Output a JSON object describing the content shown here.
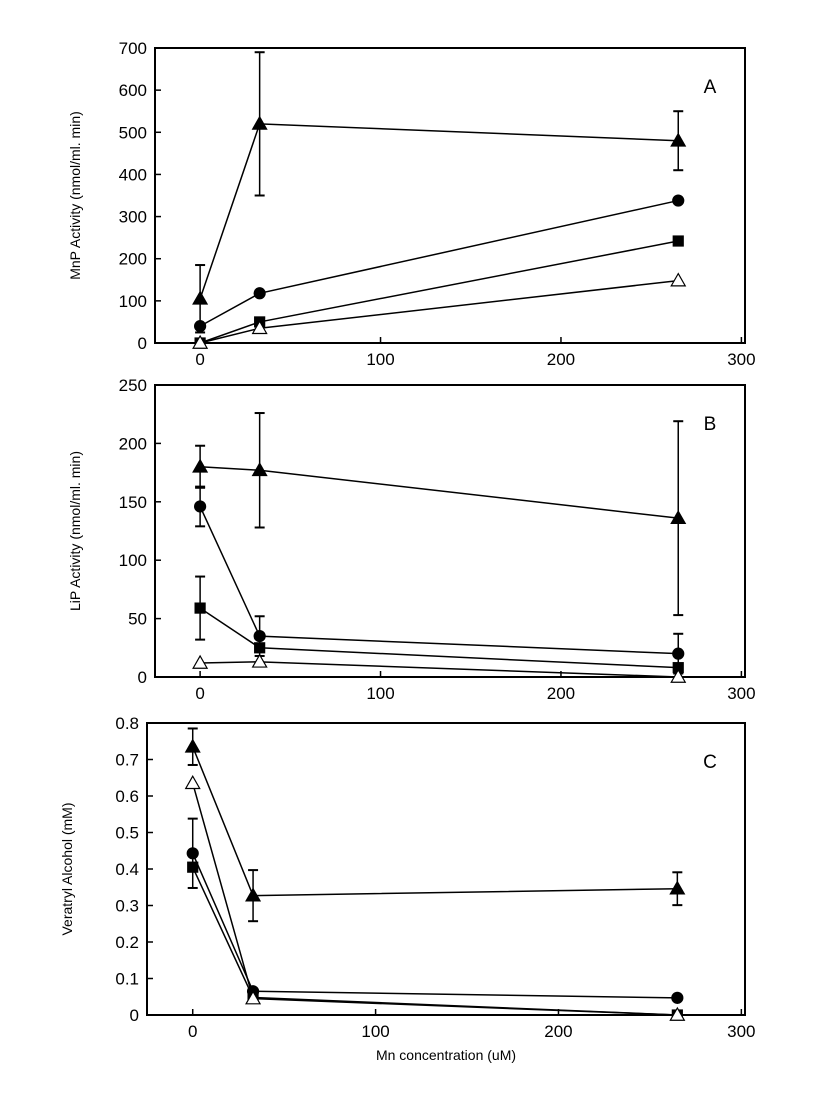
{
  "chart_data": [
    {
      "type": "line",
      "annotation": "A",
      "y_label": "MnP Activity (nmol/ml. min)",
      "x": [
        0,
        33,
        265
      ],
      "xlim": [
        -25,
        302
      ],
      "xticks": [
        0,
        100,
        200,
        300
      ],
      "ylim": [
        0,
        700
      ],
      "yticks": [
        0,
        100,
        200,
        300,
        400,
        500,
        600,
        700
      ],
      "series": [
        {
          "marker": "triangle-filled",
          "color": "#000000",
          "values": [
            105,
            520,
            480
          ],
          "errors": [
            80,
            170,
            70
          ]
        },
        {
          "marker": "circle-filled",
          "color": "#000000",
          "values": [
            40,
            118,
            338
          ]
        },
        {
          "marker": "square-filled",
          "color": "#000000",
          "values": [
            0,
            50,
            242
          ]
        },
        {
          "marker": "triangle-open",
          "color": "#000000",
          "values": [
            0,
            35,
            148
          ]
        }
      ]
    },
    {
      "type": "line",
      "annotation": "B",
      "y_label": "LiP Activity (nmol/ml. min)",
      "x": [
        0,
        33,
        265
      ],
      "xlim": [
        -25,
        302
      ],
      "xticks": [
        0,
        100,
        200,
        300
      ],
      "ylim": [
        0,
        250
      ],
      "yticks": [
        0,
        50,
        100,
        150,
        200,
        250
      ],
      "series": [
        {
          "marker": "triangle-filled",
          "color": "#000000",
          "values": [
            180,
            177,
            136
          ],
          "errors": [
            18,
            49,
            83
          ]
        },
        {
          "marker": "circle-filled",
          "color": "#000000",
          "values": [
            146,
            35,
            20
          ],
          "errors": [
            17,
            17,
            17
          ]
        },
        {
          "marker": "square-filled",
          "color": "#000000",
          "values": [
            59,
            25,
            8
          ],
          "errors": [
            27,
            null,
            null
          ]
        },
        {
          "marker": "triangle-open",
          "color": "#000000",
          "values": [
            12,
            13,
            0
          ]
        }
      ]
    },
    {
      "type": "line",
      "annotation": "C",
      "y_label": "Veratryl Alcohol (mM)",
      "x_label": "Mn concentration (uM)",
      "x": [
        0,
        33,
        265
      ],
      "xlim": [
        -25,
        302
      ],
      "xticks": [
        0,
        100,
        200,
        300
      ],
      "ylim": [
        0,
        0.8
      ],
      "yticks": [
        0,
        0.1,
        0.2,
        0.3,
        0.4,
        0.5,
        0.6,
        0.7,
        0.8
      ],
      "series": [
        {
          "marker": "triangle-filled",
          "color": "#000000",
          "values": [
            0.735,
            0.327,
            0.346
          ],
          "errors": [
            0.05,
            0.07,
            0.045
          ]
        },
        {
          "marker": "circle-filled",
          "color": "#000000",
          "values": [
            0.443,
            0.065,
            0.047
          ],
          "errors": [
            0.095,
            null,
            null
          ]
        },
        {
          "marker": "square-filled",
          "color": "#000000",
          "values": [
            0.405,
            0.048,
            0.0
          ]
        },
        {
          "marker": "triangle-open",
          "color": "#000000",
          "values": [
            0.635,
            0.045,
            0.0
          ]
        }
      ]
    }
  ]
}
